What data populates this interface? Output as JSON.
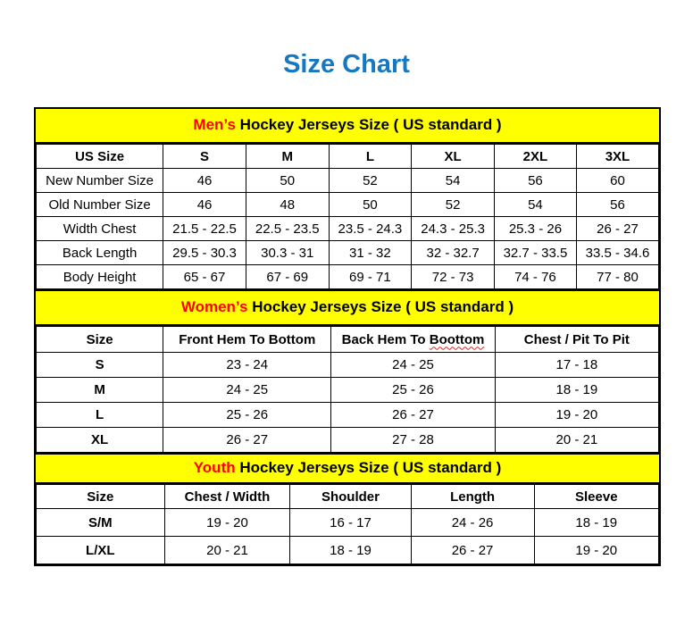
{
  "title": "Size Chart",
  "colors": {
    "title_blue": "#1778C2",
    "band_yellow": "#FFFF00",
    "accent_red": "#FF0000",
    "squiggle_red": "#E02020",
    "border_black": "#000000"
  },
  "sections": [
    {
      "id": "mens",
      "band": {
        "highlight": "Men’s",
        "rest": " Hockey Jerseys Size ( US standard )"
      },
      "columns": [
        "US Size",
        "S",
        "M",
        "L",
        "XL",
        "2XL",
        "3XL"
      ],
      "rows": [
        {
          "label": "New Number Size",
          "values": [
            "46",
            "50",
            "52",
            "54",
            "56",
            "60"
          ]
        },
        {
          "label": "Old Number Size",
          "values": [
            "46",
            "48",
            "50",
            "52",
            "54",
            "56"
          ]
        },
        {
          "label": "Width Chest",
          "values": [
            "21.5 - 22.5",
            "22.5 - 23.5",
            "23.5 - 24.3",
            "24.3 - 25.3",
            "25.3 - 26",
            "26 - 27"
          ]
        },
        {
          "label": "Back Length",
          "values": [
            "29.5 - 30.3",
            "30.3 - 31",
            "31 - 32",
            "32 - 32.7",
            "32.7 - 33.5",
            "33.5 - 34.6"
          ]
        },
        {
          "label": "Body Height",
          "values": [
            "65 - 67",
            "67 - 69",
            "69 - 71",
            "72 - 73",
            "74 - 76",
            "77 - 80"
          ]
        }
      ]
    },
    {
      "id": "womens",
      "band": {
        "highlight": "Women’s",
        "rest": " Hockey Jerseys Size ( US standard )"
      },
      "columns": [
        "Size",
        "Front Hem To Bottom",
        "Back Hem To Boottom",
        "Chest / Pit To Pit"
      ],
      "squiggle": {
        "column_index": 2,
        "word": "Boottom"
      },
      "rows": [
        {
          "label": "S",
          "values": [
            "23 - 24",
            "24 - 25",
            "17 - 18"
          ]
        },
        {
          "label": "M",
          "values": [
            "24 - 25",
            "25 - 26",
            "18 - 19"
          ]
        },
        {
          "label": "L",
          "values": [
            "25 - 26",
            "26 - 27",
            "19 - 20"
          ]
        },
        {
          "label": "XL",
          "values": [
            "26 - 27",
            "27 - 28",
            "20 - 21"
          ]
        }
      ]
    },
    {
      "id": "youth",
      "band": {
        "highlight": "Youth",
        "rest": " Hockey Jerseys Size ( US standard )"
      },
      "columns": [
        "Size",
        "Chest / Width",
        "Shoulder",
        "Length",
        "Sleeve"
      ],
      "rows": [
        {
          "label": "S/M",
          "values": [
            "19 - 20",
            "16 - 17",
            "24 - 26",
            "18 - 19"
          ]
        },
        {
          "label": "L/XL",
          "values": [
            "20 - 21",
            "18 - 19",
            "26 - 27",
            "19 - 20"
          ]
        }
      ]
    }
  ]
}
